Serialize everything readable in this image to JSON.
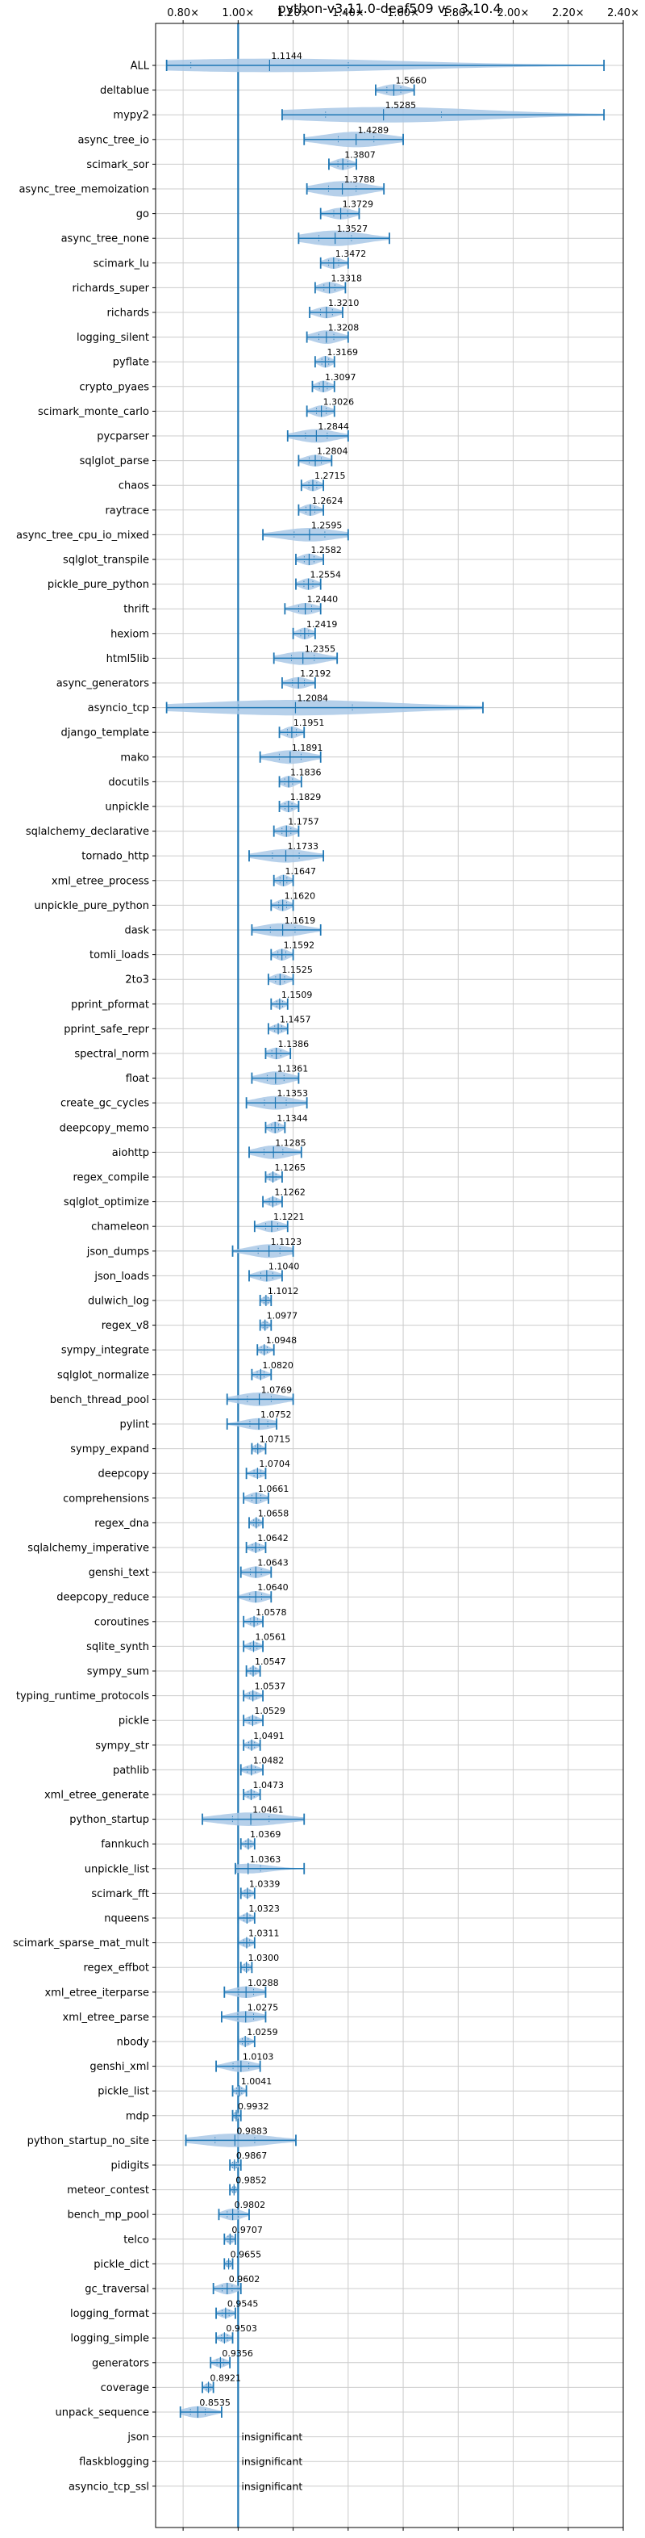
{
  "chart_data": {
    "type": "violin",
    "title": "python-v3.11.0-deaf509 vs. 3.10.4",
    "xlabel": "",
    "ylabel": "",
    "xlim": [
      0.7,
      2.4
    ],
    "xticks": [
      0.8,
      1.0,
      1.2,
      1.4,
      1.6,
      1.8,
      2.0,
      2.2,
      2.4
    ],
    "xtick_labels": [
      "0.80×",
      "1.00×",
      "1.20×",
      "1.40×",
      "1.60×",
      "1.80×",
      "2.00×",
      "2.20×",
      "2.40×"
    ],
    "reference_line": 1.0,
    "grid": true,
    "insignificant_label": "insignificant",
    "colors": {
      "violin": "#a9c8e6",
      "lines": "#1f77b4",
      "grid": "#cccccc"
    },
    "benchmarks": [
      {
        "name": "ALL",
        "mean": 1.1144,
        "label": "1.1144",
        "min": 0.74,
        "max": 2.33,
        "w": 0.7
      },
      {
        "name": "deltablue",
        "mean": 1.566,
        "label": "1.5660",
        "min": 1.5,
        "max": 1.64,
        "w": 0.6
      },
      {
        "name": "mypy2",
        "mean": 1.5285,
        "label": "1.5285",
        "min": 1.16,
        "max": 2.33,
        "w": 0.8
      },
      {
        "name": "async_tree_io",
        "mean": 1.4289,
        "label": "1.4289",
        "min": 1.24,
        "max": 1.6,
        "w": 0.8
      },
      {
        "name": "scimark_sor",
        "mean": 1.3807,
        "label": "1.3807",
        "min": 1.33,
        "max": 1.43,
        "w": 0.6
      },
      {
        "name": "async_tree_memoization",
        "mean": 1.3788,
        "label": "1.3788",
        "min": 1.25,
        "max": 1.53,
        "w": 0.8
      },
      {
        "name": "go",
        "mean": 1.3729,
        "label": "1.3729",
        "min": 1.3,
        "max": 1.44,
        "w": 0.6
      },
      {
        "name": "async_tree_none",
        "mean": 1.3527,
        "label": "1.3527",
        "min": 1.22,
        "max": 1.55,
        "w": 0.8
      },
      {
        "name": "scimark_lu",
        "mean": 1.3472,
        "label": "1.3472",
        "min": 1.3,
        "max": 1.4,
        "w": 0.6
      },
      {
        "name": "richards_super",
        "mean": 1.3318,
        "label": "1.3318",
        "min": 1.28,
        "max": 1.39,
        "w": 0.6
      },
      {
        "name": "richards",
        "mean": 1.321,
        "label": "1.3210",
        "min": 1.26,
        "max": 1.38,
        "w": 0.6
      },
      {
        "name": "logging_silent",
        "mean": 1.3208,
        "label": "1.3208",
        "min": 1.25,
        "max": 1.4,
        "w": 0.7
      },
      {
        "name": "pyflate",
        "mean": 1.3169,
        "label": "1.3169",
        "min": 1.28,
        "max": 1.35,
        "w": 0.6
      },
      {
        "name": "crypto_pyaes",
        "mean": 1.3097,
        "label": "1.3097",
        "min": 1.27,
        "max": 1.35,
        "w": 0.6
      },
      {
        "name": "scimark_monte_carlo",
        "mean": 1.3026,
        "label": "1.3026",
        "min": 1.25,
        "max": 1.35,
        "w": 0.6
      },
      {
        "name": "pycparser",
        "mean": 1.2844,
        "label": "1.2844",
        "min": 1.18,
        "max": 1.4,
        "w": 0.7
      },
      {
        "name": "sqlglot_parse",
        "mean": 1.2804,
        "label": "1.2804",
        "min": 1.22,
        "max": 1.34,
        "w": 0.6
      },
      {
        "name": "chaos",
        "mean": 1.2715,
        "label": "1.2715",
        "min": 1.23,
        "max": 1.31,
        "w": 0.6
      },
      {
        "name": "raytrace",
        "mean": 1.2624,
        "label": "1.2624",
        "min": 1.22,
        "max": 1.31,
        "w": 0.6
      },
      {
        "name": "async_tree_cpu_io_mixed",
        "mean": 1.2595,
        "label": "1.2595",
        "min": 1.09,
        "max": 1.4,
        "w": 0.7
      },
      {
        "name": "sqlglot_transpile",
        "mean": 1.2582,
        "label": "1.2582",
        "min": 1.21,
        "max": 1.31,
        "w": 0.6
      },
      {
        "name": "pickle_pure_python",
        "mean": 1.2554,
        "label": "1.2554",
        "min": 1.21,
        "max": 1.3,
        "w": 0.6
      },
      {
        "name": "thrift",
        "mean": 1.244,
        "label": "1.2440",
        "min": 1.17,
        "max": 1.3,
        "w": 0.6
      },
      {
        "name": "hexiom",
        "mean": 1.2419,
        "label": "1.2419",
        "min": 1.2,
        "max": 1.28,
        "w": 0.6
      },
      {
        "name": "html5lib",
        "mean": 1.2355,
        "label": "1.2355",
        "min": 1.13,
        "max": 1.36,
        "w": 0.7
      },
      {
        "name": "async_generators",
        "mean": 1.2192,
        "label": "1.2192",
        "min": 1.16,
        "max": 1.28,
        "w": 0.6
      },
      {
        "name": "asyncio_tcp",
        "mean": 1.2084,
        "label": "1.2084",
        "min": 0.74,
        "max": 1.89,
        "w": 0.8
      },
      {
        "name": "django_template",
        "mean": 1.1951,
        "label": "1.1951",
        "min": 1.15,
        "max": 1.24,
        "w": 0.6
      },
      {
        "name": "mako",
        "mean": 1.1891,
        "label": "1.1891",
        "min": 1.08,
        "max": 1.3,
        "w": 0.7
      },
      {
        "name": "docutils",
        "mean": 1.1836,
        "label": "1.1836",
        "min": 1.15,
        "max": 1.23,
        "w": 0.6
      },
      {
        "name": "unpickle",
        "mean": 1.1829,
        "label": "1.1829",
        "min": 1.15,
        "max": 1.22,
        "w": 0.6
      },
      {
        "name": "sqlalchemy_declarative",
        "mean": 1.1757,
        "label": "1.1757",
        "min": 1.13,
        "max": 1.22,
        "w": 0.6
      },
      {
        "name": "tornado_http",
        "mean": 1.1733,
        "label": "1.1733",
        "min": 1.04,
        "max": 1.31,
        "w": 0.7
      },
      {
        "name": "xml_etree_process",
        "mean": 1.1647,
        "label": "1.1647",
        "min": 1.13,
        "max": 1.2,
        "w": 0.6
      },
      {
        "name": "unpickle_pure_python",
        "mean": 1.162,
        "label": "1.1620",
        "min": 1.12,
        "max": 1.2,
        "w": 0.6
      },
      {
        "name": "dask",
        "mean": 1.1619,
        "label": "1.1619",
        "min": 1.05,
        "max": 1.3,
        "w": 0.7
      },
      {
        "name": "tomli_loads",
        "mean": 1.1592,
        "label": "1.1592",
        "min": 1.12,
        "max": 1.2,
        "w": 0.6
      },
      {
        "name": "2to3",
        "mean": 1.1525,
        "label": "1.1525",
        "min": 1.11,
        "max": 1.2,
        "w": 0.6
      },
      {
        "name": "pprint_pformat",
        "mean": 1.1509,
        "label": "1.1509",
        "min": 1.12,
        "max": 1.18,
        "w": 0.5
      },
      {
        "name": "pprint_safe_repr",
        "mean": 1.1457,
        "label": "1.1457",
        "min": 1.11,
        "max": 1.18,
        "w": 0.5
      },
      {
        "name": "spectral_norm",
        "mean": 1.1386,
        "label": "1.1386",
        "min": 1.1,
        "max": 1.19,
        "w": 0.6
      },
      {
        "name": "float",
        "mean": 1.1361,
        "label": "1.1361",
        "min": 1.05,
        "max": 1.22,
        "w": 0.7
      },
      {
        "name": "create_gc_cycles",
        "mean": 1.1353,
        "label": "1.1353",
        "min": 1.03,
        "max": 1.25,
        "w": 0.7
      },
      {
        "name": "deepcopy_memo",
        "mean": 1.1344,
        "label": "1.1344",
        "min": 1.1,
        "max": 1.17,
        "w": 0.6
      },
      {
        "name": "aiohttp",
        "mean": 1.1285,
        "label": "1.1285",
        "min": 1.04,
        "max": 1.23,
        "w": 0.7
      },
      {
        "name": "regex_compile",
        "mean": 1.1265,
        "label": "1.1265",
        "min": 1.1,
        "max": 1.16,
        "w": 0.5
      },
      {
        "name": "sqlglot_optimize",
        "mean": 1.1262,
        "label": "1.1262",
        "min": 1.09,
        "max": 1.16,
        "w": 0.5
      },
      {
        "name": "chameleon",
        "mean": 1.1221,
        "label": "1.1221",
        "min": 1.06,
        "max": 1.18,
        "w": 0.6
      },
      {
        "name": "json_dumps",
        "mean": 1.1123,
        "label": "1.1123",
        "min": 0.98,
        "max": 1.2,
        "w": 0.7
      },
      {
        "name": "json_loads",
        "mean": 1.104,
        "label": "1.1040",
        "min": 1.04,
        "max": 1.16,
        "w": 0.6
      },
      {
        "name": "dulwich_log",
        "mean": 1.1012,
        "label": "1.1012",
        "min": 1.08,
        "max": 1.12,
        "w": 0.5
      },
      {
        "name": "regex_v8",
        "mean": 1.0977,
        "label": "1.0977",
        "min": 1.08,
        "max": 1.12,
        "w": 0.5
      },
      {
        "name": "sympy_integrate",
        "mean": 1.0948,
        "label": "1.0948",
        "min": 1.07,
        "max": 1.13,
        "w": 0.5
      },
      {
        "name": "sqlglot_normalize",
        "mean": 1.082,
        "label": "1.0820",
        "min": 1.05,
        "max": 1.12,
        "w": 0.5
      },
      {
        "name": "bench_thread_pool",
        "mean": 1.0769,
        "label": "1.0769",
        "min": 0.96,
        "max": 1.2,
        "w": 0.7
      },
      {
        "name": "pylint",
        "mean": 1.0752,
        "label": "1.0752",
        "min": 0.96,
        "max": 1.14,
        "w": 0.6
      },
      {
        "name": "sympy_expand",
        "mean": 1.0715,
        "label": "1.0715",
        "min": 1.05,
        "max": 1.1,
        "w": 0.5
      },
      {
        "name": "deepcopy",
        "mean": 1.0704,
        "label": "1.0704",
        "min": 1.03,
        "max": 1.1,
        "w": 0.5
      },
      {
        "name": "comprehensions",
        "mean": 1.0661,
        "label": "1.0661",
        "min": 1.02,
        "max": 1.11,
        "w": 0.6
      },
      {
        "name": "regex_dna",
        "mean": 1.0658,
        "label": "1.0658",
        "min": 1.04,
        "max": 1.09,
        "w": 0.5
      },
      {
        "name": "sqlalchemy_imperative",
        "mean": 1.0642,
        "label": "1.0642",
        "min": 1.03,
        "max": 1.1,
        "w": 0.5
      },
      {
        "name": "genshi_text",
        "mean": 1.0643,
        "label": "1.0643",
        "min": 1.01,
        "max": 1.12,
        "w": 0.6
      },
      {
        "name": "deepcopy_reduce",
        "mean": 1.064,
        "label": "1.0640",
        "min": 1.0,
        "max": 1.12,
        "w": 0.6
      },
      {
        "name": "coroutines",
        "mean": 1.0578,
        "label": "1.0578",
        "min": 1.02,
        "max": 1.09,
        "w": 0.5
      },
      {
        "name": "sqlite_synth",
        "mean": 1.0561,
        "label": "1.0561",
        "min": 1.02,
        "max": 1.09,
        "w": 0.5
      },
      {
        "name": "sympy_sum",
        "mean": 1.0547,
        "label": "1.0547",
        "min": 1.03,
        "max": 1.08,
        "w": 0.5
      },
      {
        "name": "typing_runtime_protocols",
        "mean": 1.0537,
        "label": "1.0537",
        "min": 1.02,
        "max": 1.09,
        "w": 0.5
      },
      {
        "name": "pickle",
        "mean": 1.0529,
        "label": "1.0529",
        "min": 1.02,
        "max": 1.09,
        "w": 0.5
      },
      {
        "name": "sympy_str",
        "mean": 1.0491,
        "label": "1.0491",
        "min": 1.02,
        "max": 1.08,
        "w": 0.5
      },
      {
        "name": "pathlib",
        "mean": 1.0482,
        "label": "1.0482",
        "min": 1.01,
        "max": 1.09,
        "w": 0.5
      },
      {
        "name": "xml_etree_generate",
        "mean": 1.0473,
        "label": "1.0473",
        "min": 1.02,
        "max": 1.08,
        "w": 0.5
      },
      {
        "name": "python_startup",
        "mean": 1.0461,
        "label": "1.0461",
        "min": 0.87,
        "max": 1.24,
        "w": 0.7
      },
      {
        "name": "fannkuch",
        "mean": 1.0369,
        "label": "1.0369",
        "min": 1.01,
        "max": 1.06,
        "w": 0.5
      },
      {
        "name": "unpickle_list",
        "mean": 1.0363,
        "label": "1.0363",
        "min": 0.99,
        "max": 1.24,
        "w": 0.5
      },
      {
        "name": "scimark_fft",
        "mean": 1.0339,
        "label": "1.0339",
        "min": 1.01,
        "max": 1.06,
        "w": 0.5
      },
      {
        "name": "nqueens",
        "mean": 1.0323,
        "label": "1.0323",
        "min": 1.0,
        "max": 1.06,
        "w": 0.5
      },
      {
        "name": "scimark_sparse_mat_mult",
        "mean": 1.0311,
        "label": "1.0311",
        "min": 1.0,
        "max": 1.06,
        "w": 0.5
      },
      {
        "name": "regex_effbot",
        "mean": 1.03,
        "label": "1.0300",
        "min": 1.01,
        "max": 1.05,
        "w": 0.5
      },
      {
        "name": "xml_etree_iterparse",
        "mean": 1.0288,
        "label": "1.0288",
        "min": 0.95,
        "max": 1.1,
        "w": 0.6
      },
      {
        "name": "xml_etree_parse",
        "mean": 1.0275,
        "label": "1.0275",
        "min": 0.94,
        "max": 1.1,
        "w": 0.6
      },
      {
        "name": "nbody",
        "mean": 1.0259,
        "label": "1.0259",
        "min": 1.0,
        "max": 1.06,
        "w": 0.5
      },
      {
        "name": "genshi_xml",
        "mean": 1.0103,
        "label": "1.0103",
        "min": 0.92,
        "max": 1.08,
        "w": 0.6
      },
      {
        "name": "pickle_list",
        "mean": 1.0041,
        "label": "1.0041",
        "min": 0.98,
        "max": 1.03,
        "w": 0.5
      },
      {
        "name": "mdp",
        "mean": 0.9932,
        "label": "0.9932",
        "min": 0.98,
        "max": 1.01,
        "w": 0.4
      },
      {
        "name": "python_startup_no_site",
        "mean": 0.9883,
        "label": "0.9883",
        "min": 0.81,
        "max": 1.21,
        "w": 0.7
      },
      {
        "name": "pidigits",
        "mean": 0.9867,
        "label": "0.9867",
        "min": 0.97,
        "max": 1.01,
        "w": 0.4
      },
      {
        "name": "meteor_contest",
        "mean": 0.9852,
        "label": "0.9852",
        "min": 0.97,
        "max": 1.0,
        "w": 0.4
      },
      {
        "name": "bench_mp_pool",
        "mean": 0.9802,
        "label": "0.9802",
        "min": 0.93,
        "max": 1.04,
        "w": 0.6
      },
      {
        "name": "telco",
        "mean": 0.9707,
        "label": "0.9707",
        "min": 0.95,
        "max": 0.99,
        "w": 0.5
      },
      {
        "name": "pickle_dict",
        "mean": 0.9655,
        "label": "0.9655",
        "min": 0.95,
        "max": 0.98,
        "w": 0.4
      },
      {
        "name": "gc_traversal",
        "mean": 0.9602,
        "label": "0.9602",
        "min": 0.91,
        "max": 1.01,
        "w": 0.6
      },
      {
        "name": "logging_format",
        "mean": 0.9545,
        "label": "0.9545",
        "min": 0.92,
        "max": 0.99,
        "w": 0.5
      },
      {
        "name": "logging_simple",
        "mean": 0.9503,
        "label": "0.9503",
        "min": 0.92,
        "max": 0.98,
        "w": 0.5
      },
      {
        "name": "generators",
        "mean": 0.9356,
        "label": "0.9356",
        "min": 0.9,
        "max": 0.97,
        "w": 0.5
      },
      {
        "name": "coverage",
        "mean": 0.8921,
        "label": "0.8921",
        "min": 0.87,
        "max": 0.91,
        "w": 0.5
      },
      {
        "name": "unpack_sequence",
        "mean": 0.8535,
        "label": "0.8535",
        "min": 0.79,
        "max": 0.94,
        "w": 0.6
      },
      {
        "name": "json",
        "insignificant": true
      },
      {
        "name": "flaskblogging",
        "insignificant": true
      },
      {
        "name": "asyncio_tcp_ssl",
        "insignificant": true
      }
    ]
  }
}
